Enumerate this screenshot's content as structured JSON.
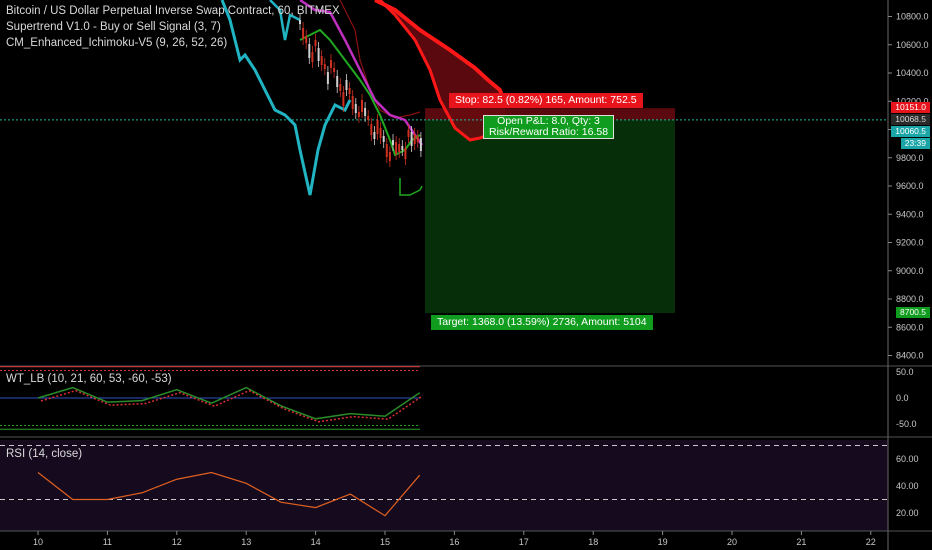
{
  "legends": {
    "main_title": "Bitcoin / US Dollar Perpetual Inverse Swap Contract, 60, BITMEX",
    "supertrend": "Supertrend V1.0 - Buy or Sell Signal (3, 7)",
    "ichimoku": "CM_Enhanced_Ichimoku-V5 (9, 26, 52, 26)",
    "wt": "WT_LB (10, 21, 60, 53, -60, -53)",
    "rsi": "RSI (14, close)"
  },
  "position": {
    "stop_label": "Stop: 82.5 (0.82%) 165, Amount: 752.5",
    "pnl_label": "Open P&L: 8.0, Qty: 3",
    "rr_label": "Risk/Reward Ratio: 16.58",
    "target_label": "Target: 1368.0 (13.59%) 2736, Amount: 5104",
    "entry": 10068.5,
    "stop": 10151.0,
    "target": 8700.5
  },
  "price_tags": {
    "stop": "10151.0",
    "entry": "10068.5",
    "current": "10060.5",
    "countdown": "23:39",
    "target": "8700.5"
  },
  "colors": {
    "background": "#000000",
    "supertrend_up": "#21b5c4",
    "supertrend_down": "#c71c27",
    "conversion": "#c030c0",
    "base": "#20a820",
    "cloud": "#ff1818",
    "candle_up": "#d0d0d0",
    "candle_down": "#d03020",
    "profit_zone": "#062e08",
    "loss_zone": "#6a0a10",
    "wt_dotted": "#d83030",
    "rsi_line": "#e06020",
    "rsi_bg": "#160b1e"
  },
  "chart_data": [
    {
      "type": "line",
      "panel": "price",
      "title": "Bitcoin / US Dollar Perpetual Inverse Swap Contract, 60, BITMEX",
      "x_ticks": [
        "10",
        "11",
        "12",
        "13",
        "14",
        "15",
        "16",
        "17",
        "18",
        "19",
        "20",
        "21",
        "22"
      ],
      "y_ticks": [
        10800.0,
        10600.0,
        10400.0,
        10200.0,
        10000.0,
        9800.0,
        9600.0,
        9400.0,
        9200.0,
        9000.0,
        8800.0,
        8600.0,
        8400.0
      ],
      "ylim": [
        8300,
        10950
      ],
      "x": [
        13.4,
        13.6,
        13.8,
        14.0,
        14.2,
        14.4,
        14.6,
        14.8,
        15.0,
        15.2,
        15.4,
        15.55
      ],
      "series": [
        {
          "name": "Supertrend",
          "values": [
            10860,
            10720,
            10560,
            10330,
            10110,
            9880,
            9960,
            10060,
            10010,
            9780,
            9930,
            10000
          ]
        },
        {
          "name": "Close",
          "values": [
            10900,
            10780,
            10560,
            10330,
            10400,
            10210,
            10060,
            10020,
            9600,
            9920,
            10040,
            10060
          ]
        }
      ]
    },
    {
      "type": "line",
      "panel": "oscillator",
      "title": "WT_LB (10, 21, 60, 53, -60, -53)",
      "y_ticks": [
        50.0,
        0.0,
        -50.0
      ],
      "ylim": [
        -75,
        75
      ],
      "reference_lines": [
        60,
        53,
        -53,
        -60
      ],
      "x": [
        10,
        10.5,
        11,
        11.5,
        12,
        12.5,
        13,
        13.5,
        14,
        14.5,
        15,
        15.5
      ],
      "values": [
        0,
        20,
        -8,
        -5,
        16,
        -10,
        20,
        -15,
        -40,
        -30,
        -35,
        10
      ]
    },
    {
      "type": "line",
      "panel": "rsi",
      "title": "RSI (14, close)",
      "y_ticks": [
        60.0,
        40.0,
        20.0
      ],
      "ylim": [
        10,
        75
      ],
      "reference_lines": [
        70,
        30
      ],
      "x": [
        10,
        10.5,
        11,
        11.5,
        12,
        12.5,
        13,
        13.5,
        14,
        14.5,
        15,
        15.5
      ],
      "values": [
        50,
        30,
        30,
        35,
        45,
        50,
        42,
        28,
        24,
        34,
        18,
        48
      ]
    }
  ]
}
